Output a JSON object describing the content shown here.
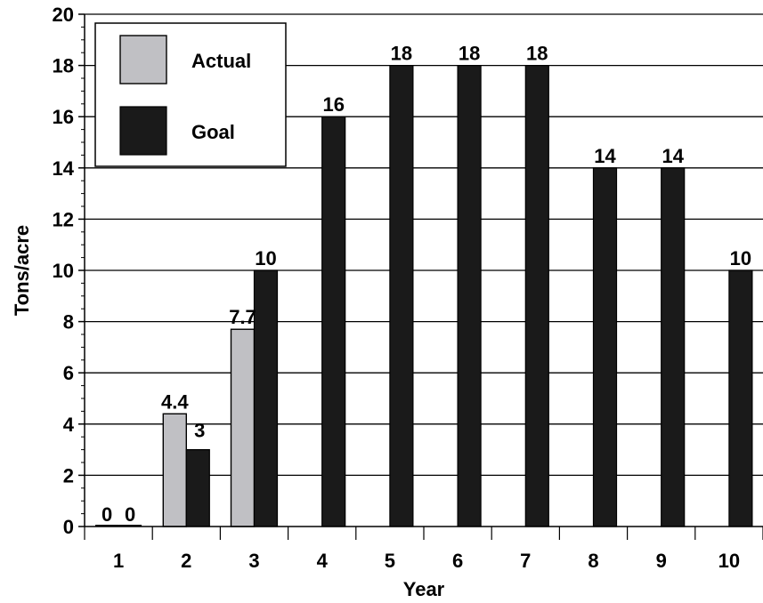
{
  "chart_data": {
    "type": "bar",
    "xlabel": "Year",
    "ylabel": "Tons/acre",
    "categories": [
      "1",
      "2",
      "3",
      "4",
      "5",
      "6",
      "7",
      "8",
      "9",
      "10"
    ],
    "yticks": [
      "0",
      "2",
      "4",
      "6",
      "8",
      "10",
      "12",
      "14",
      "16",
      "18",
      "20"
    ],
    "ylim": [
      0,
      20
    ],
    "grid": "horizontal",
    "legend": "top-left",
    "series": [
      {
        "name": "Actual",
        "color": "#c0c0c4",
        "values": [
          0,
          4.4,
          7.7,
          null,
          null,
          null,
          null,
          null,
          null,
          null
        ],
        "labels": [
          "0",
          "4.4",
          "7.7",
          "",
          "",
          "",
          "",
          "",
          "",
          ""
        ]
      },
      {
        "name": "Goal",
        "color": "#1a1a1a",
        "values": [
          0,
          3,
          10,
          16,
          18,
          18,
          18,
          14,
          14,
          10
        ],
        "labels": [
          "0",
          "3",
          "10",
          "16",
          "18",
          "18",
          "18",
          "14",
          "14",
          "10"
        ]
      }
    ]
  }
}
